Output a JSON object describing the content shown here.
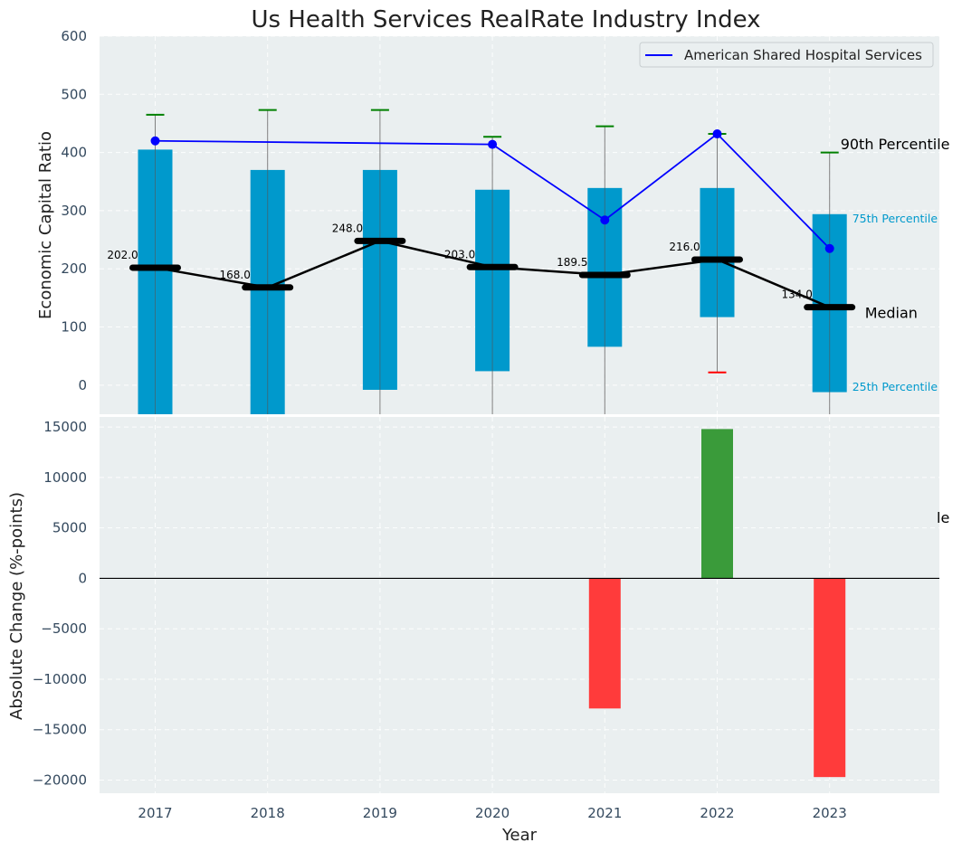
{
  "chart_data": [
    {
      "type": "bar",
      "title": "Us Health Services RealRate Industry Index",
      "ylabel": "Economic Capital Ratio",
      "ylim": [
        -50,
        600
      ],
      "yticks": [
        0,
        100,
        200,
        300,
        400,
        500,
        600
      ],
      "categories": [
        "2017",
        "2018",
        "2019",
        "2020",
        "2021",
        "2022",
        "2023"
      ],
      "percentile_25": [
        -50,
        -50,
        -8,
        24,
        66,
        117,
        -12
      ],
      "percentile_75": [
        405,
        370,
        370,
        336,
        339,
        339,
        294
      ],
      "median": [
        202.0,
        168.0,
        248.0,
        203.0,
        189.5,
        216.0,
        134.0
      ],
      "median_labels": [
        "202.0",
        "168.0",
        "248.0",
        "203.0",
        "189.5",
        "216.0",
        "134.0"
      ],
      "percentile_90": [
        465,
        473,
        473,
        427,
        445,
        432,
        400
      ],
      "percentile_10": [
        null,
        null,
        null,
        null,
        null,
        22,
        null
      ],
      "series": [
        {
          "name": "American Shared Hospital Services",
          "values": [
            420,
            null,
            null,
            414,
            284,
            432,
            235
          ],
          "color": "#0000ff"
        }
      ],
      "annotations": {
        "p90": "90th Percentile",
        "p75": "75th Percentile",
        "median": "Median",
        "p25": "25th Percentile"
      },
      "colors": {
        "box": "#0099cc",
        "median": "#000000",
        "p90_cap": "#008000",
        "p10_cap": "#ff0000",
        "background": "#eaeff0"
      },
      "grid": true,
      "legend": "top-right"
    },
    {
      "type": "bar",
      "xlabel": "Year",
      "ylabel": "Absolute Change (%-points)",
      "ylim": [
        -21300,
        16000
      ],
      "yticks": [
        -20000,
        -15000,
        -10000,
        -5000,
        0,
        5000,
        10000,
        15000
      ],
      "ytick_labels": [
        "−20000",
        "−15000",
        "−10000",
        "−5000",
        "0",
        "5000",
        "10000",
        "15000"
      ],
      "categories": [
        "2017",
        "2018",
        "2019",
        "2020",
        "2021",
        "2022",
        "2023"
      ],
      "values": [
        0,
        0,
        0,
        0,
        -12900,
        14800,
        -19700
      ],
      "colors": {
        "positive": "#3a9b3a",
        "negative": "#ff3b3b"
      },
      "stray_text": "le",
      "grid": true
    }
  ]
}
